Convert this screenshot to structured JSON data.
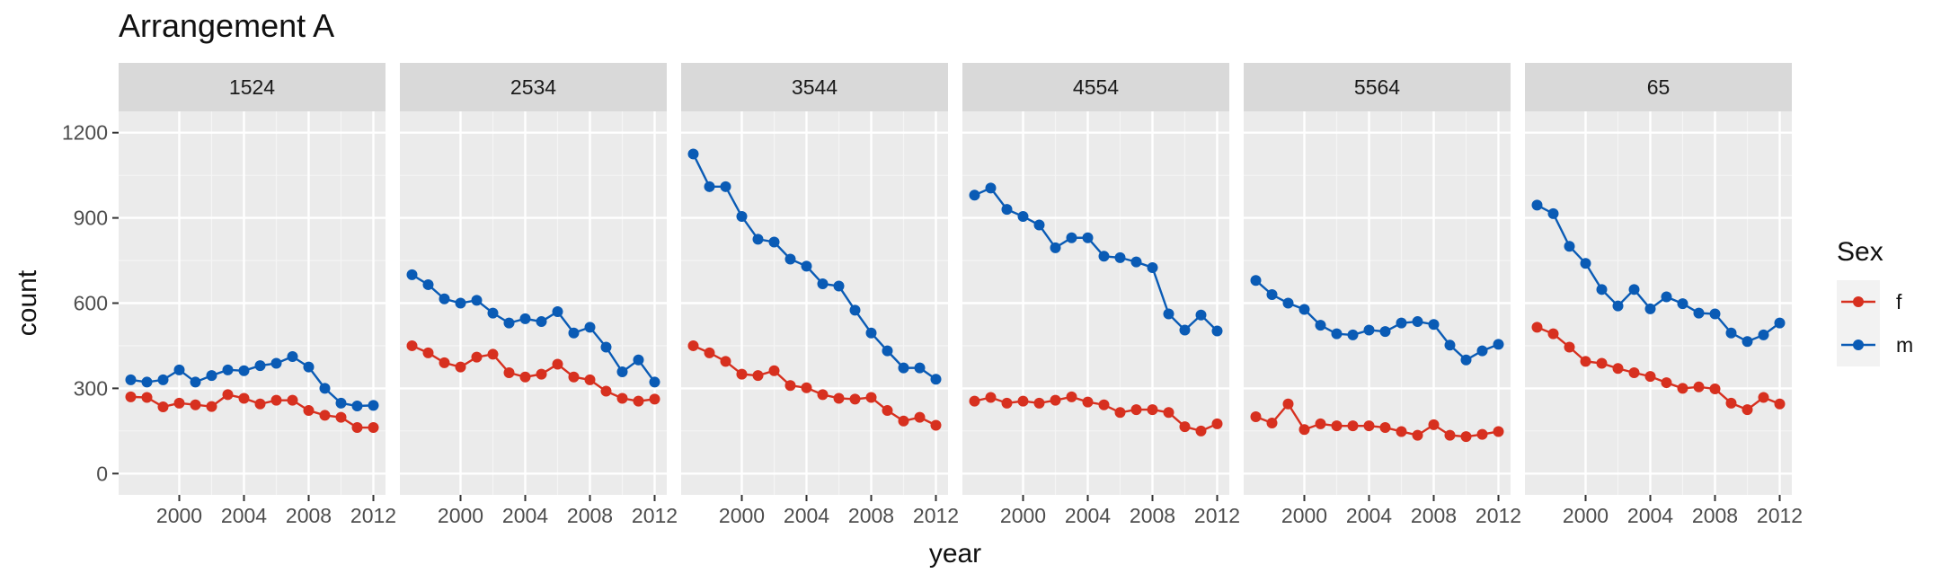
{
  "chart_data": {
    "type": "line",
    "title": "Arrangement A",
    "xlabel": "year",
    "ylabel": "count",
    "ylim": [
      -75,
      1275
    ],
    "xlim": [
      1996.25,
      2012.75
    ],
    "yticks": [
      0,
      300,
      600,
      900,
      1200
    ],
    "xticks": [
      2000,
      2004,
      2008,
      2012
    ],
    "grid": true,
    "legend": {
      "title": "Sex",
      "position": "right",
      "entries": [
        {
          "label": "f",
          "color": "#D7301F"
        },
        {
          "label": "m",
          "color": "#0A5BB5"
        }
      ]
    },
    "x": [
      1997,
      1998,
      1999,
      2000,
      2001,
      2002,
      2003,
      2004,
      2005,
      2006,
      2007,
      2008,
      2009,
      2010,
      2011,
      2012
    ],
    "panels": [
      {
        "label": "1524",
        "series": [
          {
            "name": "f",
            "values": [
              270,
              268,
              235,
              248,
              242,
              236,
              278,
              265,
              245,
              258,
              258,
              222,
              205,
              198,
              162,
              162
            ]
          },
          {
            "name": "m",
            "values": [
              330,
              322,
              330,
              365,
              322,
              345,
              365,
              362,
              380,
              388,
              412,
              375,
              300,
              248,
              238,
              240
            ]
          }
        ]
      },
      {
        "label": "2534",
        "series": [
          {
            "name": "f",
            "values": [
              450,
              425,
              390,
              375,
              410,
              420,
              355,
              340,
              350,
              385,
              340,
              330,
              290,
              265,
              255,
              262
            ]
          },
          {
            "name": "m",
            "values": [
              700,
              665,
              615,
              600,
              610,
              565,
              530,
              545,
              535,
              570,
              495,
              515,
              445,
              358,
              400,
              322
            ]
          }
        ]
      },
      {
        "label": "3544",
        "series": [
          {
            "name": "f",
            "values": [
              450,
              425,
              395,
              350,
              345,
              362,
              310,
              302,
              278,
              265,
              262,
              268,
              222,
              185,
              198,
              170
            ]
          },
          {
            "name": "m",
            "values": [
              1125,
              1010,
              1010,
              905,
              825,
              815,
              755,
              730,
              668,
              660,
              575,
              495,
              432,
              372,
              372,
              332
            ]
          }
        ]
      },
      {
        "label": "4554",
        "series": [
          {
            "name": "f",
            "values": [
              255,
              268,
              248,
              255,
              248,
              258,
              270,
              252,
              242,
              215,
              225,
              225,
              215,
              165,
              150,
              175
            ]
          },
          {
            "name": "m",
            "values": [
              980,
              1005,
              930,
              905,
              875,
              795,
              830,
              830,
              765,
              760,
              745,
              725,
              562,
              505,
              558,
              502
            ]
          }
        ]
      },
      {
        "label": "5564",
        "series": [
          {
            "name": "f",
            "values": [
              200,
              178,
              245,
              155,
              175,
              168,
              168,
              168,
              162,
              148,
              135,
              172,
              135,
              130,
              138,
              148
            ]
          },
          {
            "name": "m",
            "values": [
              680,
              630,
              600,
              578,
              522,
              492,
              488,
              505,
              500,
              530,
              535,
              525,
              452,
              400,
              432,
              455
            ]
          }
        ]
      },
      {
        "label": "65",
        "series": [
          {
            "name": "f",
            "values": [
              515,
              492,
              445,
              395,
              388,
              370,
              355,
              342,
              320,
              300,
              305,
              298,
              248,
              225,
              268,
              245
            ]
          },
          {
            "name": "m",
            "values": [
              945,
              915,
              800,
              740,
              648,
              590,
              648,
              580,
              622,
              598,
              565,
              562,
              495,
              465,
              488,
              530
            ]
          }
        ]
      }
    ]
  }
}
